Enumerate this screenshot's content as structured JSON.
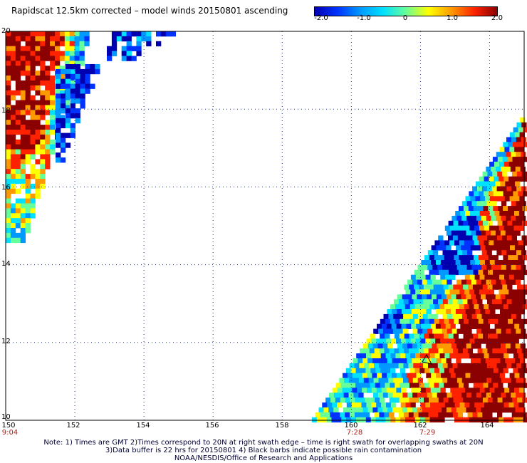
{
  "title": "Rapidscat 12.5km corrected – model winds 20150801 ascending",
  "colorbar": {
    "ticks": [
      "-2.0",
      "-1.0",
      "0",
      "1.0",
      "2.0"
    ],
    "range": [
      -2.0,
      2.0
    ],
    "stops": [
      "#0000b0",
      "#0033ff",
      "#0099ff",
      "#00e0ff",
      "#66ff99",
      "#ffff00",
      "#ff9900",
      "#ff2200",
      "#8b0000"
    ]
  },
  "map": {
    "lon_range": [
      150,
      165
    ],
    "lat_range": [
      10,
      20
    ],
    "x_ticks": [
      "150",
      "152",
      "154",
      "156",
      "158",
      "160",
      "162",
      "164"
    ],
    "y_ticks": [
      "20",
      "18",
      "16",
      "14",
      "12",
      "10"
    ],
    "time_labels": [
      "9:04",
      "7:28",
      "7:29"
    ]
  },
  "notes": [
    "Note: 1) Times are GMT 2)Times correspond to 20N at right swath edge – time is right swath for overlapping swaths at 20N",
    "3)Data buffer is 22 hrs for 20150801 4) Black barbs indicate possible rain contamination",
    "NOAA/NESDIS/Office of Research and Applications"
  ]
}
